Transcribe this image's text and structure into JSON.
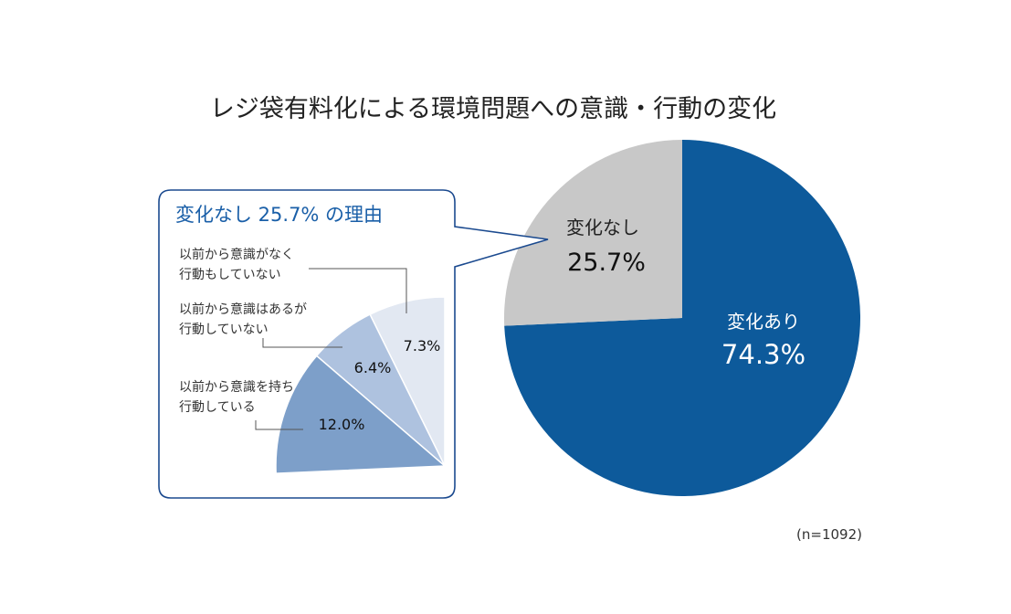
{
  "chart_data": [
    {
      "type": "pie",
      "title": "レジ袋有料化による環境問題への意識・行動の変化",
      "slices": [
        {
          "label": "変化あり",
          "value": 74.3,
          "value_label": "74.3%",
          "color": "#0d5a9b"
        },
        {
          "label": "変化なし",
          "value": 25.7,
          "value_label": "25.7%",
          "color": "#c8c8c8"
        }
      ],
      "note": "(n=1092)"
    },
    {
      "type": "pie",
      "title": "変化なし 25.7% の理由",
      "slices": [
        {
          "label_lines": [
            "以前から意識を持ち",
            "行動している"
          ],
          "value": 12.0,
          "value_label": "12.0%",
          "color": "#7d9fc9"
        },
        {
          "label_lines": [
            "以前から意識はあるが",
            "行動していない"
          ],
          "value": 6.4,
          "value_label": "6.4%",
          "color": "#aec2df"
        },
        {
          "label_lines": [
            "以前から意識がなく",
            "行動もしていない"
          ],
          "value": 7.3,
          "value_label": "7.3%",
          "color": "#e2e8f2"
        }
      ]
    }
  ]
}
